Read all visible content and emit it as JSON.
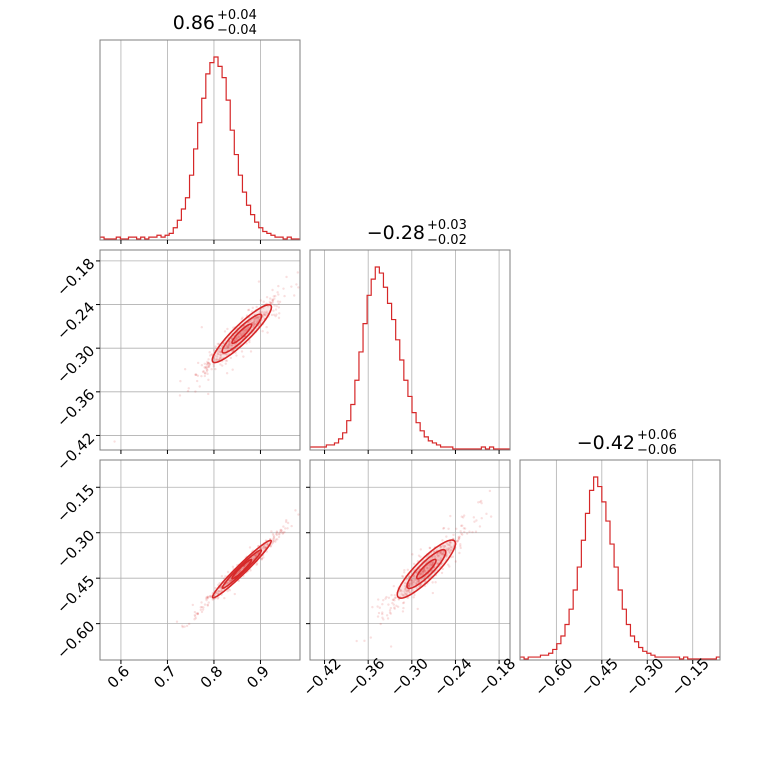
{
  "chart_data": {
    "type": "corner",
    "color": "#d62728",
    "grid": true,
    "parameters": [
      {
        "index": 0,
        "median": 0.86,
        "median_label": "0.86",
        "upper": "+0.04",
        "lower": "−0.04",
        "range": [
          0.555,
          0.985
        ],
        "ticks": [
          0.6,
          0.7,
          0.8,
          0.9
        ],
        "tick_labels": [
          "0.6",
          "0.7",
          "0.8",
          "0.9"
        ],
        "sigma": 0.04
      },
      {
        "index": 1,
        "median": -0.28,
        "median_label": "−0.28",
        "upper": "+0.03",
        "lower": "−0.02",
        "range": [
          -0.44,
          -0.165
        ],
        "ticks": [
          -0.42,
          -0.36,
          -0.3,
          -0.24,
          -0.18
        ],
        "tick_labels": [
          "−0.42",
          "−0.36",
          "−0.30",
          "−0.24",
          "−0.18"
        ],
        "sigma": 0.025
      },
      {
        "index": 2,
        "median": -0.42,
        "median_label": "−0.42",
        "upper": "+0.06",
        "lower": "−0.06",
        "range": [
          -0.72,
          -0.06
        ],
        "ticks": [
          -0.6,
          -0.45,
          -0.3,
          -0.15
        ],
        "tick_labels": [
          "−0.60",
          "−0.45",
          "−0.30",
          "−0.15"
        ],
        "sigma": 0.06
      }
    ],
    "histograms": [
      {
        "param": 0,
        "bin_start": 0.555,
        "bin_width": 0.00875,
        "counts": [
          1,
          0,
          0,
          0,
          1,
          0,
          0,
          1,
          1,
          0,
          1,
          0,
          1,
          1,
          2,
          1,
          2,
          3,
          6,
          10,
          16,
          22,
          34,
          48,
          62,
          75,
          88,
          94,
          97,
          92,
          86,
          74,
          58,
          45,
          34,
          25,
          18,
          13,
          9,
          6,
          4,
          3,
          2,
          1,
          1,
          0,
          1,
          0,
          0
        ]
      },
      {
        "param": 1,
        "bin_start": -0.44,
        "bin_width": 0.00561,
        "counts": [
          1,
          1,
          1,
          1,
          2,
          2,
          3,
          5,
          8,
          14,
          22,
          34,
          48,
          62,
          76,
          84,
          90,
          87,
          80,
          72,
          64,
          54,
          44,
          34,
          26,
          18,
          13,
          9,
          6,
          4,
          3,
          2,
          1,
          1,
          1,
          0,
          0,
          0,
          0,
          0,
          0,
          0,
          1,
          0,
          1,
          0,
          0,
          0,
          0
        ]
      },
      {
        "param": 2,
        "bin_start": -0.72,
        "bin_width": 0.0135,
        "counts": [
          1,
          0,
          1,
          1,
          1,
          2,
          2,
          3,
          5,
          8,
          12,
          18,
          26,
          36,
          48,
          62,
          76,
          88,
          95,
          90,
          82,
          72,
          60,
          48,
          36,
          26,
          18,
          12,
          9,
          6,
          4,
          3,
          2,
          1,
          1,
          1,
          1,
          1,
          1,
          0,
          1,
          0,
          0,
          0,
          0,
          0,
          0,
          0,
          1
        ]
      }
    ],
    "panels": [
      {
        "row": 0,
        "col": 0,
        "kind": "hist",
        "title": true
      },
      {
        "row": 1,
        "col": 0,
        "kind": "2d",
        "x": 0,
        "y": 1
      },
      {
        "row": 1,
        "col": 1,
        "kind": "hist",
        "title": true
      },
      {
        "row": 2,
        "col": 0,
        "kind": "2d",
        "x": 0,
        "y": 2
      },
      {
        "row": 2,
        "col": 1,
        "kind": "2d",
        "x": 1,
        "y": 2
      },
      {
        "row": 2,
        "col": 2,
        "kind": "hist",
        "title": true
      }
    ],
    "correlations": {
      "0-1": 0.95,
      "0-2": 0.985,
      "1-2": 0.93
    },
    "contour_levels": [
      0.5,
      1.0,
      1.5
    ],
    "xlabel": "",
    "ylabel": "",
    "title": ""
  }
}
